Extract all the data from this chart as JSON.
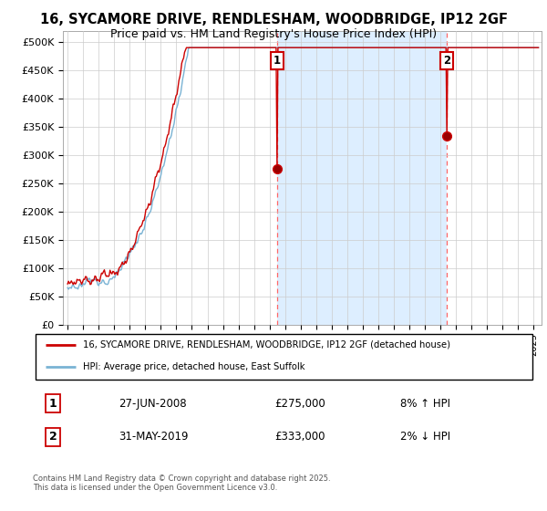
{
  "title_line1": "16, SYCAMORE DRIVE, RENDLESHAM, WOODBRIDGE, IP12 2GF",
  "title_line2": "Price paid vs. HM Land Registry's House Price Index (HPI)",
  "ylim": [
    0,
    520000
  ],
  "yticks": [
    0,
    50000,
    100000,
    150000,
    200000,
    250000,
    300000,
    350000,
    400000,
    450000,
    500000
  ],
  "ytick_labels": [
    "£0",
    "£50K",
    "£100K",
    "£150K",
    "£200K",
    "£250K",
    "£300K",
    "£350K",
    "£400K",
    "£450K",
    "£500K"
  ],
  "legend_line1": "16, SYCAMORE DRIVE, RENDLESHAM, WOODBRIDGE, IP12 2GF (detached house)",
  "legend_line2": "HPI: Average price, detached house, East Suffolk",
  "transaction1_date": "27-JUN-2008",
  "transaction1_price": "£275,000",
  "transaction1_hpi": "8% ↑ HPI",
  "transaction2_date": "31-MAY-2019",
  "transaction2_price": "£333,000",
  "transaction2_hpi": "2% ↓ HPI",
  "footer": "Contains HM Land Registry data © Crown copyright and database right 2025.\nThis data is licensed under the Open Government Licence v3.0.",
  "hpi_color": "#7ab3d4",
  "price_color": "#cc0000",
  "shade_color": "#ddeeff",
  "background_color": "#ffffff",
  "grid_color": "#cccccc",
  "t1_year": 2008.5,
  "t2_year": 2019.4,
  "t1_price": 275000,
  "t2_price": 333000,
  "xmin": 1994.7,
  "xmax": 2025.5
}
